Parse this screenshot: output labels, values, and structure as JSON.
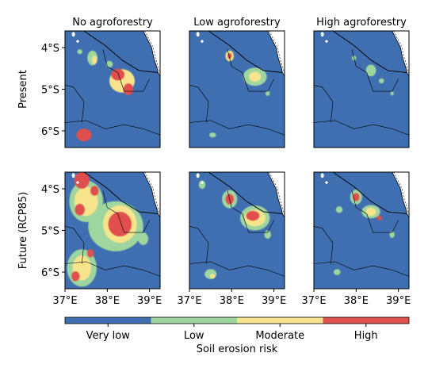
{
  "chart_data": {
    "type": "heatmap",
    "title": "",
    "columns": [
      "No agroforestry",
      "Low agroforestry",
      "High agroforestry"
    ],
    "rows": [
      "Present",
      "Future (RCP85)"
    ],
    "x_ticks": [
      "37°E",
      "38°E",
      "39°E"
    ],
    "y_ticks": [
      "4°S",
      "5°S",
      "6°S"
    ],
    "x_tick_values": [
      37,
      38,
      39
    ],
    "y_tick_values": [
      -4,
      -5,
      -6
    ],
    "xlim": [
      37.0,
      39.25
    ],
    "ylim": [
      -6.4,
      -3.6
    ],
    "colorbar": {
      "label": "Soil erosion risk",
      "classes": [
        {
          "name": "Very low",
          "color": "#3f6fb0"
        },
        {
          "name": "Low",
          "color": "#9fd69f"
        },
        {
          "name": "Moderate",
          "color": "#f7e48c"
        },
        {
          "name": "High",
          "color": "#e0504d"
        }
      ]
    },
    "hotspots": [
      {
        "panel": "present-none",
        "lon": 38.35,
        "lat": -4.8,
        "risk": "High"
      },
      {
        "panel": "present-none",
        "lon": 37.65,
        "lat": -4.25,
        "risk": "Moderate"
      },
      {
        "panel": "present-none",
        "lon": 37.45,
        "lat": -6.1,
        "risk": "High"
      },
      {
        "panel": "present-low",
        "lon": 38.55,
        "lat": -4.7,
        "risk": "Moderate"
      },
      {
        "panel": "present-low",
        "lon": 37.95,
        "lat": -4.2,
        "risk": "High"
      },
      {
        "panel": "present-high",
        "lon": 38.35,
        "lat": -4.55,
        "risk": "Low"
      },
      {
        "panel": "future-none",
        "lon": 38.3,
        "lat": -4.85,
        "risk": "High"
      },
      {
        "panel": "future-none",
        "lon": 37.5,
        "lat": -4.3,
        "risk": "High"
      },
      {
        "panel": "future-none",
        "lon": 37.4,
        "lat": -5.9,
        "risk": "Moderate"
      },
      {
        "panel": "future-low",
        "lon": 38.55,
        "lat": -4.7,
        "risk": "High"
      },
      {
        "panel": "future-low",
        "lon": 37.95,
        "lat": -4.25,
        "risk": "High"
      },
      {
        "panel": "future-high",
        "lon": 38.0,
        "lat": -4.2,
        "risk": "High"
      },
      {
        "panel": "future-high",
        "lon": 38.35,
        "lat": -4.55,
        "risk": "Moderate"
      }
    ]
  }
}
